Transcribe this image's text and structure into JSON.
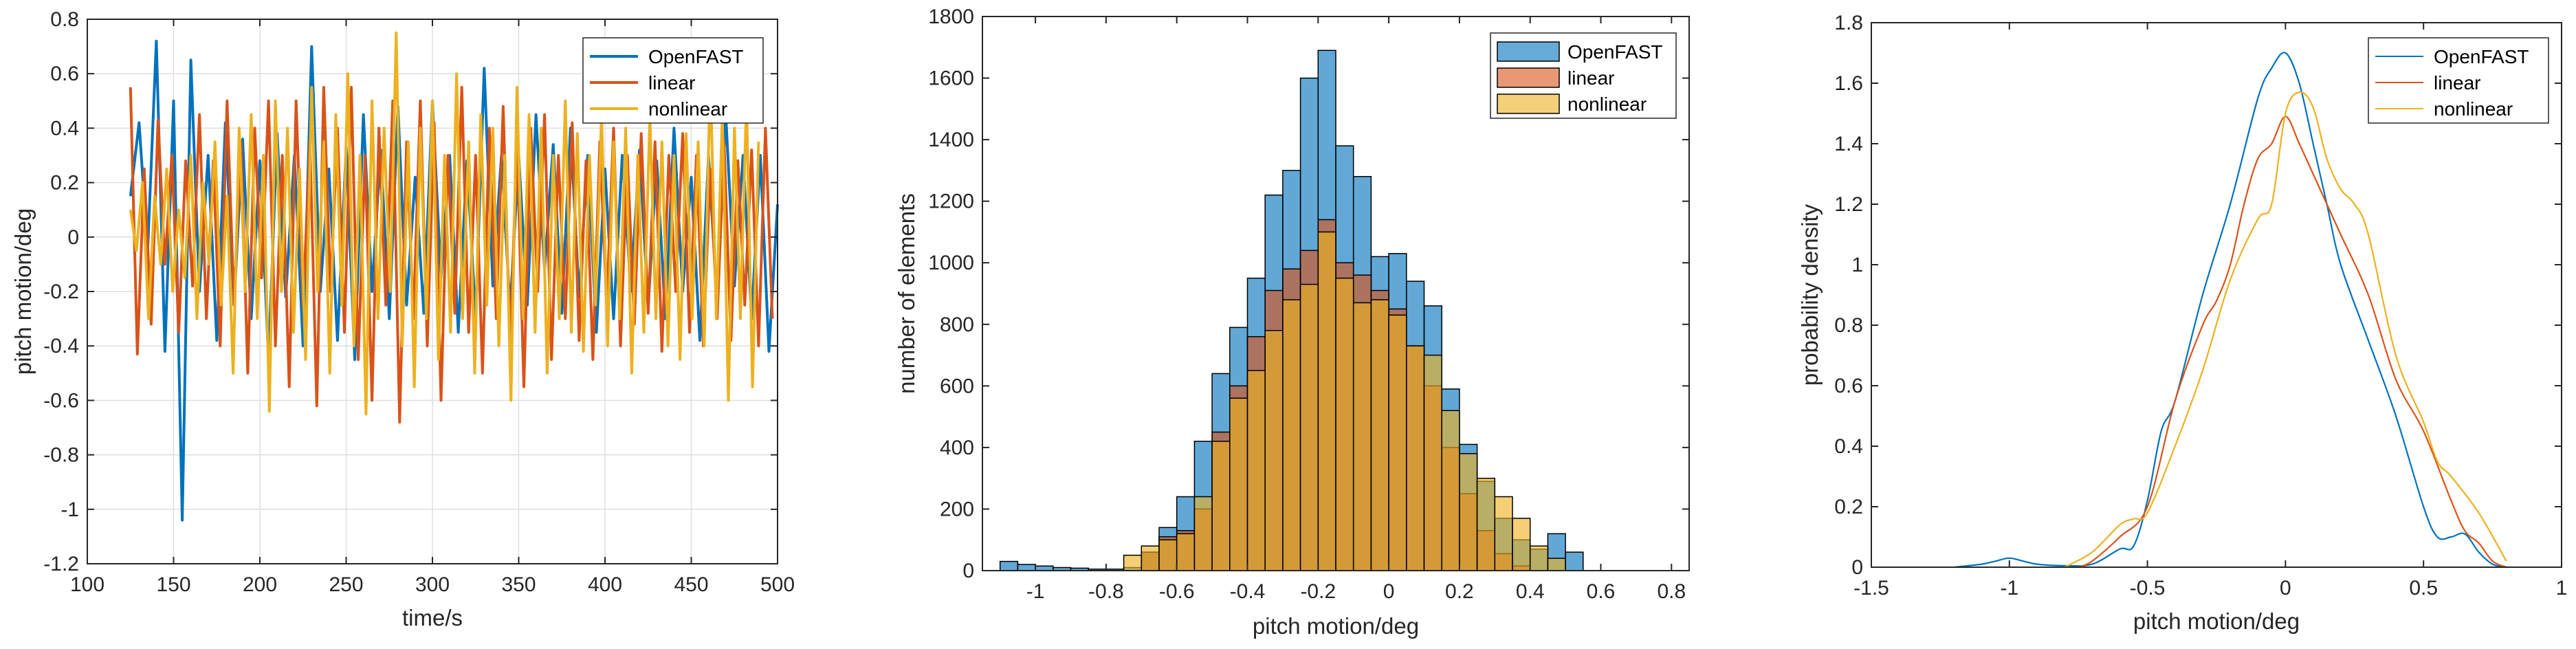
{
  "colors": {
    "blue": "#0072BD",
    "orange": "#D95319",
    "yellow": "#EDB120",
    "axis": "#262626",
    "grid": "#DFDFDF"
  },
  "chart_data": [
    {
      "type": "line",
      "xlabel": "time/s",
      "ylabel": "pitch motion/deg",
      "xlim": [
        100,
        500
      ],
      "ylim": [
        -1.2,
        0.8
      ],
      "xticks": [
        "100",
        "150",
        "200",
        "250",
        "300",
        "350",
        "400",
        "450",
        "500"
      ],
      "yticks": [
        "-1.2",
        "-1",
        "-0.8",
        "-0.6",
        "-0.4",
        "-0.2",
        "0",
        "0.2",
        "0.4",
        "0.6",
        "0.8"
      ],
      "grid": true,
      "legend_position": "top-right",
      "series": [
        {
          "name": "OpenFAST",
          "color": "#0072BD",
          "x_start": 125,
          "x_step": 5,
          "values": [
            0.15,
            0.42,
            -0.05,
            0.72,
            -0.42,
            0.5,
            -1.04,
            0.65,
            -0.2,
            0.3,
            -0.38,
            0.42,
            -0.25,
            0.36,
            -0.3,
            0.28,
            -0.45,
            0.38,
            -0.22,
            0.3,
            -0.4,
            0.7,
            -0.2,
            0.25,
            -0.38,
            0.33,
            -0.45,
            0.45,
            -0.2,
            0.32,
            -0.3,
            0.48,
            -0.25,
            0.22,
            -0.28,
            0.5,
            -0.15,
            0.3,
            -0.35,
            0.28,
            -0.3,
            0.62,
            -0.18,
            0.3,
            -0.27,
            0.3,
            -0.25,
            0.45,
            -0.12,
            0.34,
            -0.28,
            0.4,
            -0.22,
            0.3,
            -0.35,
            0.25,
            -0.3,
            0.3,
            -0.2,
            0.32,
            -0.26,
            0.28,
            -0.3,
            0.4,
            -0.2,
            0.22,
            -0.38,
            0.3,
            -0.25,
            0.45,
            -0.18,
            0.3,
            -0.3,
            0.3,
            -0.42,
            0.12
          ]
        },
        {
          "name": "linear",
          "color": "#D95319",
          "x_start": 125,
          "x_step": 4,
          "values": [
            0.55,
            -0.43,
            0.25,
            -0.32,
            0.43,
            -0.1,
            0.3,
            -0.35,
            0.28,
            -0.18,
            0.45,
            -0.3,
            0.28,
            -0.4,
            0.5,
            -0.25,
            0.35,
            -0.5,
            0.4,
            -0.15,
            0.5,
            -0.4,
            0.3,
            -0.55,
            0.5,
            -0.25,
            0.35,
            -0.62,
            0.55,
            -0.2,
            0.4,
            -0.35,
            0.55,
            -0.45,
            0.3,
            -0.6,
            0.4,
            -0.25,
            0.5,
            -0.68,
            0.35,
            -0.3,
            0.5,
            -0.4,
            0.42,
            -0.6,
            0.3,
            -0.28,
            0.55,
            -0.35,
            0.3,
            -0.5,
            0.4,
            -0.3,
            0.48,
            -0.4,
            0.35,
            -0.55,
            0.4,
            -0.2,
            0.45,
            -0.45,
            0.3,
            -0.3,
            0.42,
            -0.38,
            0.28,
            -0.45,
            0.35,
            -0.25,
            0.4,
            -0.4,
            0.3,
            -0.32,
            0.38,
            -0.28,
            0.35,
            -0.42,
            0.3,
            -0.2,
            0.38,
            -0.35,
            0.3,
            -0.4,
            0.25,
            -0.3,
            0.35,
            -0.38,
            0.28,
            -0.25,
            0.32,
            -0.4,
            0.4,
            -0.3
          ]
        },
        {
          "name": "nonlinear",
          "color": "#EDB120",
          "x_start": 125,
          "x_step": 3.5,
          "values": [
            0.1,
            -0.05,
            0.2,
            -0.3,
            0.15,
            -0.1,
            0.25,
            -0.2,
            0.1,
            -0.15,
            0.3,
            -0.3,
            0.2,
            -0.1,
            0.35,
            -0.25,
            0.15,
            -0.5,
            0.4,
            -0.2,
            0.45,
            -0.3,
            0.3,
            -0.64,
            0.5,
            -0.2,
            0.4,
            -0.35,
            0.25,
            -0.45,
            0.55,
            -0.2,
            0.35,
            -0.5,
            0.45,
            -0.25,
            0.6,
            -0.4,
            0.3,
            -0.65,
            0.5,
            -0.3,
            0.4,
            -0.2,
            0.75,
            -0.4,
            0.35,
            -0.55,
            0.4,
            -0.3,
            0.5,
            -0.45,
            0.3,
            -0.35,
            0.6,
            -0.3,
            0.35,
            -0.5,
            0.45,
            -0.25,
            0.4,
            -0.4,
            0.3,
            -0.6,
            0.55,
            -0.3,
            0.45,
            -0.35,
            0.4,
            -0.5,
            0.3,
            -0.3,
            0.5,
            -0.35,
            0.38,
            -0.42,
            0.3,
            -0.25,
            0.45,
            -0.4,
            0.35,
            -0.3,
            0.4,
            -0.5,
            0.3,
            -0.35,
            0.45,
            -0.3,
            0.35,
            -0.4,
            0.3,
            -0.45,
            0.38,
            -0.3,
            0.35,
            -0.4,
            0.6,
            -0.3,
            0.45,
            -0.6,
            0.4,
            -0.3,
            0.5,
            -0.55,
            0.35
          ]
        }
      ]
    },
    {
      "type": "bar",
      "subtype": "histogram",
      "xlabel": "pitch motion/deg",
      "ylabel": "number of elements",
      "xlim": [
        -1.15,
        0.85
      ],
      "ylim": [
        0,
        1800
      ],
      "xticks": [
        "-1",
        "-0.8",
        "-0.6",
        "-0.4",
        "-0.2",
        "0",
        "0.2",
        "0.4",
        "0.6",
        "0.8"
      ],
      "yticks": [
        "0",
        "200",
        "400",
        "600",
        "800",
        "1000",
        "1200",
        "1400",
        "1600",
        "1800"
      ],
      "grid": false,
      "legend_position": "top-right",
      "series": [
        {
          "name": "OpenFAST",
          "color": "#0072BD",
          "bin_start": -1.1,
          "bin_width": 0.05,
          "values": [
            30,
            20,
            15,
            10,
            8,
            5,
            5,
            10,
            60,
            140,
            240,
            420,
            640,
            790,
            950,
            1220,
            1300,
            1600,
            1690,
            1380,
            1280,
            1020,
            1030,
            940,
            860,
            590,
            410,
            290,
            170,
            100,
            70,
            120,
            60
          ]
        },
        {
          "name": "linear",
          "color": "#D95319",
          "bin_start": -0.7,
          "bin_width": 0.05,
          "values": [
            60,
            110,
            130,
            200,
            450,
            600,
            760,
            910,
            980,
            1040,
            1140,
            1000,
            960,
            910,
            850,
            730,
            600,
            400,
            250,
            130,
            55,
            15
          ]
        },
        {
          "name": "nonlinear",
          "color": "#EDB120",
          "bin_start": -0.75,
          "bin_width": 0.05,
          "values": [
            50,
            80,
            100,
            120,
            240,
            420,
            560,
            650,
            780,
            880,
            930,
            1100,
            950,
            870,
            880,
            830,
            730,
            700,
            520,
            380,
            300,
            240,
            170,
            80,
            40
          ]
        }
      ]
    },
    {
      "type": "line",
      "subtype": "density",
      "xlabel": "pitch motion/deg",
      "ylabel": "probability density",
      "xlim": [
        -1.5,
        1
      ],
      "ylim": [
        0,
        1.8
      ],
      "xticks": [
        "-1.5",
        "-1",
        "-0.5",
        "0",
        "0.5",
        "1"
      ],
      "yticks": [
        "0",
        "0.2",
        "0.4",
        "0.6",
        "0.8",
        "1",
        "1.2",
        "1.4",
        "1.6",
        "1.8"
      ],
      "grid": false,
      "legend_position": "top-right",
      "series": [
        {
          "name": "OpenFAST",
          "color": "#0072BD",
          "x": [
            -1.2,
            -1.1,
            -1.05,
            -1.0,
            -0.95,
            -0.9,
            -0.8,
            -0.7,
            -0.6,
            -0.55,
            -0.5,
            -0.45,
            -0.4,
            -0.3,
            -0.2,
            -0.1,
            -0.05,
            0.0,
            0.05,
            0.1,
            0.15,
            0.2,
            0.3,
            0.4,
            0.5,
            0.55,
            0.6,
            0.65,
            0.7,
            0.75,
            0.8
          ],
          "y": [
            0,
            0.01,
            0.02,
            0.03,
            0.02,
            0.01,
            0.005,
            0.01,
            0.06,
            0.07,
            0.22,
            0.45,
            0.55,
            0.9,
            1.2,
            1.55,
            1.65,
            1.7,
            1.6,
            1.4,
            1.2,
            1.0,
            0.75,
            0.5,
            0.2,
            0.1,
            0.1,
            0.11,
            0.05,
            0.01,
            0
          ]
        },
        {
          "name": "linear",
          "color": "#D95319",
          "x": [
            -0.75,
            -0.7,
            -0.6,
            -0.5,
            -0.4,
            -0.3,
            -0.25,
            -0.2,
            -0.15,
            -0.1,
            -0.05,
            0.0,
            0.05,
            0.1,
            0.2,
            0.3,
            0.4,
            0.5,
            0.6,
            0.65,
            0.7,
            0.75,
            0.8
          ],
          "y": [
            0,
            0.02,
            0.1,
            0.2,
            0.55,
            0.8,
            0.88,
            1.0,
            1.2,
            1.35,
            1.4,
            1.49,
            1.4,
            1.3,
            1.1,
            0.9,
            0.62,
            0.45,
            0.22,
            0.12,
            0.08,
            0.02,
            0
          ]
        },
        {
          "name": "nonlinear",
          "color": "#EDB120",
          "x": [
            -0.8,
            -0.7,
            -0.6,
            -0.55,
            -0.5,
            -0.4,
            -0.3,
            -0.2,
            -0.1,
            -0.05,
            0.0,
            0.05,
            0.1,
            0.15,
            0.2,
            0.25,
            0.3,
            0.4,
            0.5,
            0.55,
            0.6,
            0.7,
            0.8
          ],
          "y": [
            0,
            0.05,
            0.14,
            0.16,
            0.18,
            0.4,
            0.65,
            0.95,
            1.15,
            1.2,
            1.5,
            1.57,
            1.52,
            1.35,
            1.25,
            1.2,
            1.1,
            0.7,
            0.48,
            0.35,
            0.3,
            0.18,
            0.02
          ]
        }
      ]
    }
  ]
}
